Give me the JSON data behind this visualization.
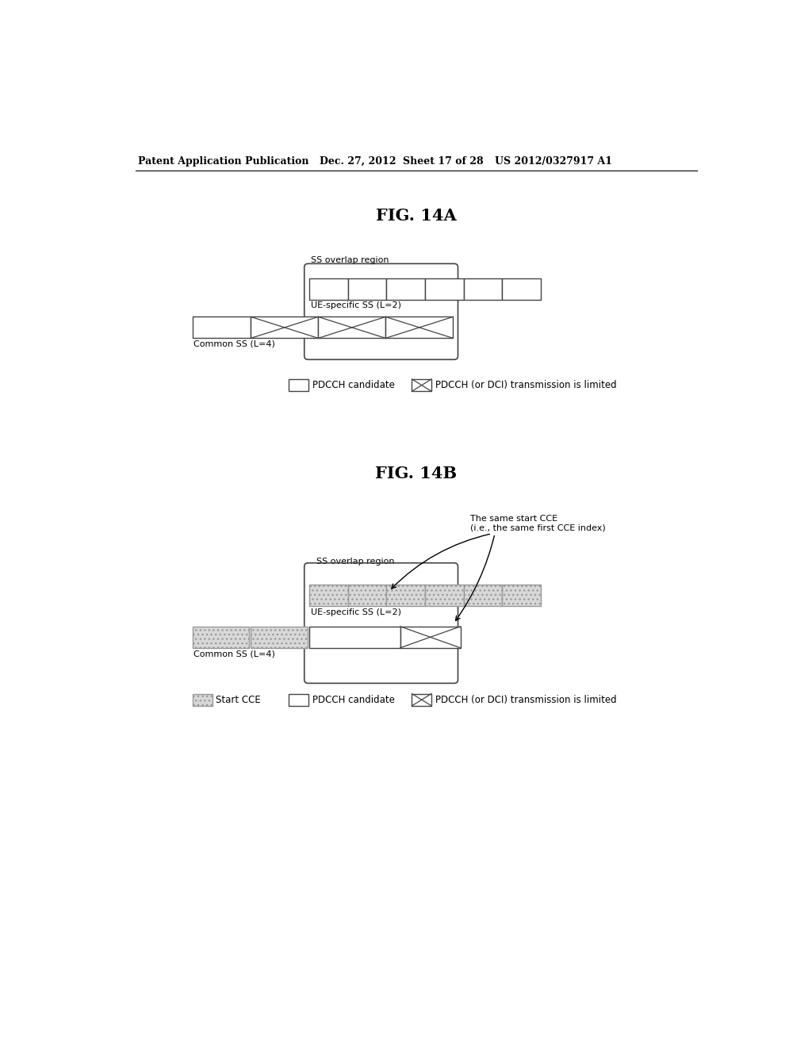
{
  "bg_color": "#ffffff",
  "header_text": "Patent Application Publication",
  "header_date": "Dec. 27, 2012",
  "header_sheet": "Sheet 17 of 28",
  "header_patent": "US 2012/0327917 A1",
  "fig14a_title": "FIG. 14A",
  "fig14b_title": "FIG. 14B",
  "edge_color": "#444444",
  "legend_pdcch_label": "PDCCH candidate",
  "legend_xmit_label": "PDCCH (or DCI) transmission is limited",
  "legend_startcce_label": "Start CCE"
}
